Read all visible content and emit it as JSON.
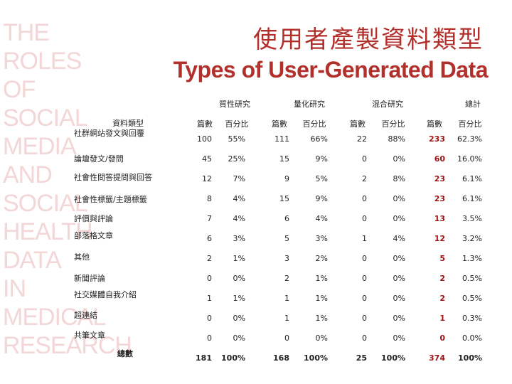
{
  "background_title_lines": [
    "THE",
    "ROLES",
    "OF",
    "SOCIAL",
    "MEDIA",
    "AND",
    "SOCIAL",
    "HEALTH",
    "DATA",
    "IN",
    "MEDICAL",
    "RESEARCH"
  ],
  "title_zh": "使用者產製資料類型",
  "title_en": "Types of User-Generated Data",
  "table": {
    "row_header": "資料類型",
    "groups": [
      "質性研究",
      "量化研究",
      "混合研究",
      "總計"
    ],
    "sub_headers": [
      "篇數",
      "百分比",
      "篇數",
      "百分比",
      "篇數",
      "百分比",
      "篇數",
      "百分比"
    ],
    "rows": [
      {
        "label": "社群網站發文與回覆",
        "cells": [
          "100",
          "55%",
          "111",
          "66%",
          "22",
          "88%",
          "233",
          "62.3%"
        ]
      },
      {
        "label": "論壇發文/發問",
        "cells": [
          "45",
          "25%",
          "15",
          "9%",
          "0",
          "0%",
          "60",
          "16.0%"
        ]
      },
      {
        "label": "社會性問答提問與回答",
        "cells": [
          "12",
          "7%",
          "9",
          "5%",
          "2",
          "8%",
          "23",
          "6.1%"
        ]
      },
      {
        "label": "社會性標籤/主題標籤",
        "cells": [
          "8",
          "4%",
          "15",
          "9%",
          "0",
          "0%",
          "23",
          "6.1%"
        ]
      },
      {
        "label": "評價與評論",
        "cells": [
          "7",
          "4%",
          "6",
          "4%",
          "0",
          "0%",
          "13",
          "3.5%"
        ]
      },
      {
        "label": "部落格文章",
        "cells": [
          "6",
          "3%",
          "5",
          "3%",
          "1",
          "4%",
          "12",
          "3.2%"
        ]
      },
      {
        "label": "其他",
        "cells": [
          "2",
          "1%",
          "3",
          "2%",
          "0",
          "0%",
          "5",
          "1.3%"
        ]
      },
      {
        "label": "新聞評論",
        "cells": [
          "0",
          "0%",
          "2",
          "1%",
          "0",
          "0%",
          "2",
          "0.5%"
        ]
      },
      {
        "label": "社交媒體自我介紹",
        "cells": [
          "1",
          "1%",
          "1",
          "1%",
          "0",
          "0%",
          "2",
          "0.5%"
        ]
      },
      {
        "label": "超連結",
        "cells": [
          "0",
          "0%",
          "1",
          "1%",
          "0",
          "0%",
          "1",
          "0.3%"
        ]
      },
      {
        "label": "共筆文章",
        "cells": [
          "0",
          "0%",
          "0",
          "0%",
          "0",
          "0%",
          "0",
          "0.0%"
        ]
      }
    ],
    "total_row": {
      "label": "總數",
      "cells": [
        "181",
        "100%",
        "168",
        "100%",
        "25",
        "100%",
        "374",
        "100%"
      ]
    }
  },
  "colors": {
    "accent": "#b2302b",
    "total_highlight": "#9e1414",
    "watermark": "#f3d6d6"
  }
}
